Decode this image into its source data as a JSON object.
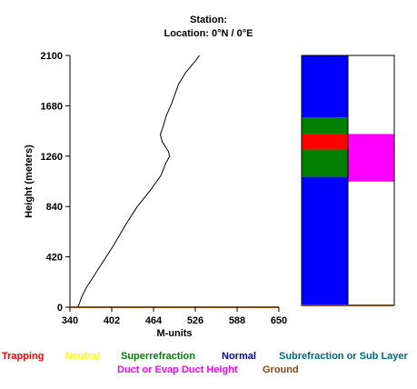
{
  "header": {
    "station_line": "Station:",
    "location_line": "Location:   0°N /   0°E"
  },
  "chart_data": {
    "type": "line",
    "title": "",
    "xlabel": "M-units",
    "ylabel": "Height (meters)",
    "xlim": [
      340,
      650
    ],
    "ylim": [
      0,
      2100
    ],
    "x_ticks": [
      "340",
      "402",
      "464",
      "526",
      "588",
      "650"
    ],
    "y_ticks": [
      "0",
      "420",
      "840",
      "1260",
      "1680",
      "2100"
    ],
    "grid": false,
    "series": [
      {
        "color": "#000000",
        "points": [
          [
            352,
            0
          ],
          [
            357,
            80
          ],
          [
            364,
            160
          ],
          [
            380,
            300
          ],
          [
            403,
            500
          ],
          [
            424,
            700
          ],
          [
            440,
            840
          ],
          [
            460,
            980
          ],
          [
            475,
            1100
          ],
          [
            482,
            1200
          ],
          [
            488,
            1260
          ],
          [
            486,
            1300
          ],
          [
            477,
            1380
          ],
          [
            474,
            1440
          ],
          [
            479,
            1520
          ],
          [
            483,
            1600
          ],
          [
            491,
            1700
          ],
          [
            501,
            1860
          ],
          [
            512,
            1960
          ],
          [
            527,
            2060
          ],
          [
            532,
            2100
          ]
        ]
      }
    ],
    "profile_bars": {
      "left_column": [
        {
          "label": "Normal",
          "from": 0,
          "to": 1080,
          "color": "#0000ff"
        },
        {
          "label": "Superrefraction",
          "from": 1080,
          "to": 1310,
          "color": "#008000"
        },
        {
          "label": "Trapping",
          "from": 1310,
          "to": 1440,
          "color": "#ff0000"
        },
        {
          "label": "Superrefraction",
          "from": 1440,
          "to": 1580,
          "color": "#008000"
        },
        {
          "label": "Normal",
          "from": 1580,
          "to": 2100,
          "color": "#0000ff"
        }
      ],
      "right_column": [
        {
          "label": "Duct or Evap Duct Height",
          "from": 1040,
          "to": 1440,
          "color": "#ff00ff"
        }
      ]
    },
    "legend": [
      {
        "label": "Trapping",
        "color": "#ff0000"
      },
      {
        "label": "Neutral",
        "color": "#ffff00"
      },
      {
        "label": "Superrefraction",
        "color": "#008000"
      },
      {
        "label": "Normal",
        "color": "#0000aa"
      },
      {
        "label": "Subrefraction or Sub Layer",
        "color": "#006680"
      },
      {
        "label": "Duct or Evap Duct Height",
        "color": "#ff00ff"
      },
      {
        "label": "Ground",
        "color": "#8b4513"
      }
    ],
    "legend_placement": "bottom"
  }
}
